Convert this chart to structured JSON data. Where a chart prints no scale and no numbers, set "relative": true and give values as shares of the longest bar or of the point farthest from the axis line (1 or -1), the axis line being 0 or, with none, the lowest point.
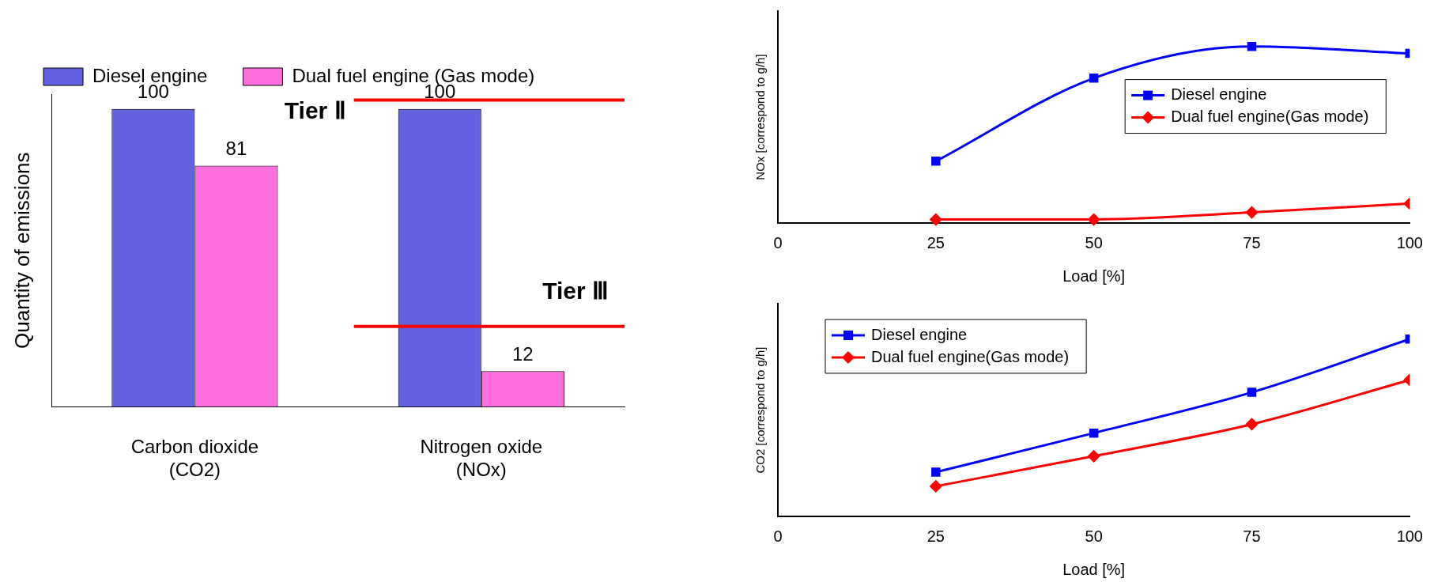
{
  "chart_data": [
    {
      "type": "bar",
      "categories": [
        "Carbon dioxide\n(CO2)",
        "Nitrogen oxide\n(NOx)"
      ],
      "ylabel": "Quantity of emissions",
      "series": [
        {
          "name": "Diesel engine",
          "color": "#2a2ad8",
          "values": [
            100,
            100
          ]
        },
        {
          "name": "Dual fuel engine (Gas mode)",
          "color": "#ff3cd2",
          "values": [
            81,
            12
          ]
        }
      ],
      "ylim": [
        0,
        105
      ],
      "tick_labels": "x",
      "data_labels": true,
      "legend": "top",
      "grid": false,
      "ref_lines": [
        {
          "axis": "y",
          "value": 103,
          "label": "Tier Ⅱ",
          "color": "#ff0000"
        },
        {
          "axis": "y",
          "value": 27,
          "label": "Tier Ⅲ",
          "color": "#ff0000"
        }
      ]
    },
    {
      "type": "line",
      "relative": true,
      "x": [
        25,
        50,
        75,
        100
      ],
      "xlim": [
        0,
        100
      ],
      "xticks": [
        0,
        25,
        50,
        75,
        100
      ],
      "xlabel": "Load [%]",
      "ylabel": "NOx [correspond to g/h]",
      "series": [
        {
          "name": "Diesel engine",
          "color": "#0000ff",
          "marker": "square",
          "values": [
            0.35,
            0.82,
            1,
            0.96
          ]
        },
        {
          "name": "Dual fuel engine(Gas mode)",
          "color": "#ff0000",
          "marker": "diamond",
          "values": [
            0.02,
            0.02,
            0.06,
            0.11
          ]
        }
      ],
      "legend": "right",
      "grid": false
    },
    {
      "type": "line",
      "relative": true,
      "x": [
        25,
        50,
        75,
        100
      ],
      "xlim": [
        0,
        100
      ],
      "xticks": [
        0,
        25,
        50,
        75,
        100
      ],
      "xlabel": "Load [%]",
      "ylabel": "CO2 [correspond to g/h]",
      "series": [
        {
          "name": "Diesel engine",
          "color": "#0000ff",
          "marker": "square",
          "values": [
            0.25,
            0.47,
            0.7,
            1
          ]
        },
        {
          "name": "Dual fuel engine(Gas mode)",
          "color": "#ff0000",
          "marker": "diamond",
          "values": [
            0.17,
            0.34,
            0.52,
            0.77
          ]
        }
      ],
      "legend": "top left",
      "grid": false
    }
  ]
}
